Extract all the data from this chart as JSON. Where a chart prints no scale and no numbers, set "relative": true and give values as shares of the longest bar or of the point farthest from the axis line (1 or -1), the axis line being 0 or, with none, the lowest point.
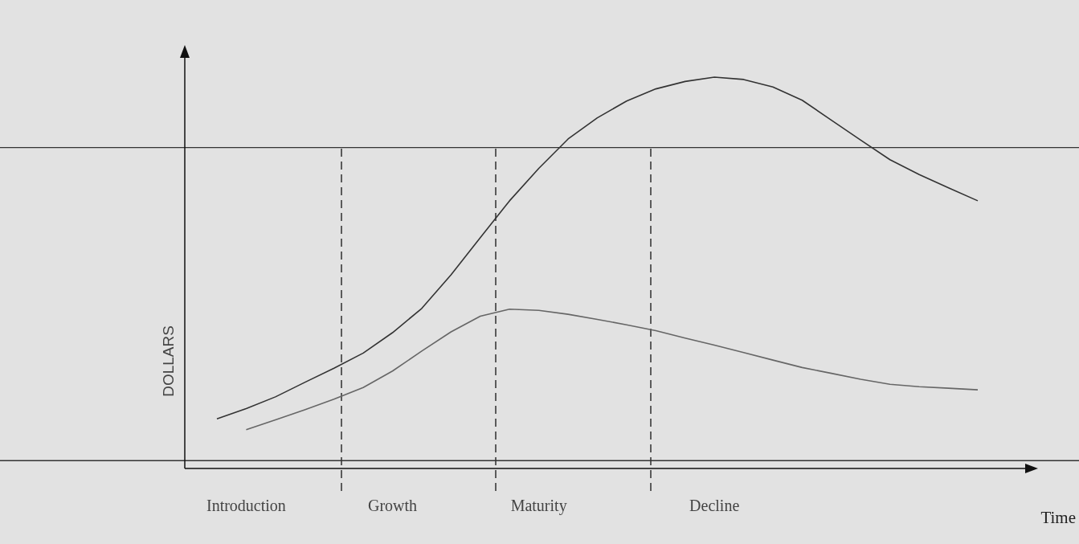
{
  "chart_data": {
    "type": "line",
    "xlabel": "Time",
    "ylabel": "DOLLARS",
    "relative": true,
    "categories": [
      null,
      "Introduction",
      null,
      null,
      null,
      null,
      "Growth",
      null,
      null,
      null,
      null,
      "Maturity",
      null,
      null,
      null,
      null,
      null,
      "Decline",
      null,
      null,
      null,
      null,
      null,
      null,
      null,
      null,
      null
    ],
    "series": [
      {
        "color": "#333333",
        "values": [
          0.127,
          0.153,
          0.183,
          0.22,
          0.256,
          0.295,
          0.347,
          0.409,
          0.495,
          0.59,
          0.684,
          0.767,
          0.842,
          0.896,
          0.939,
          0.97,
          0.989,
          1,
          0.994,
          0.975,
          0.941,
          0.89,
          0.839,
          0.789,
          0.751,
          0.717,
          0.684
        ]
      },
      {
        "color": "#666666",
        "values": [
          null,
          0.099,
          0.124,
          0.15,
          0.177,
          0.207,
          0.249,
          0.3,
          0.349,
          0.389,
          0.407,
          0.404,
          0.394,
          0.381,
          0.367,
          0.352,
          0.333,
          0.315,
          0.296,
          0.277,
          0.258,
          0.243,
          0.228,
          0.215,
          0.209,
          0.205,
          0.201
        ]
      }
    ],
    "ref_lines": [
      {
        "axis": "y",
        "value": 0.82,
        "line_style": "solid",
        "color": "#333333"
      },
      {
        "axis": "y",
        "value": 0.02,
        "line_style": "solid",
        "color": "#333333"
      }
    ]
  }
}
